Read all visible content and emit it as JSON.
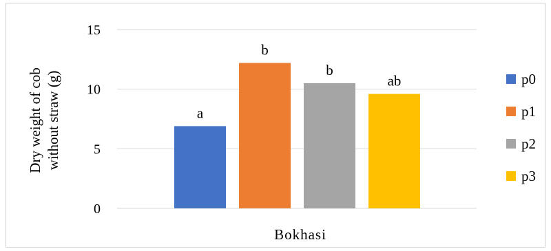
{
  "chart_data": {
    "type": "bar",
    "categories": [
      "Bokhasi"
    ],
    "series": [
      {
        "name": "p0",
        "values": [
          6.9
        ],
        "color": "#4472C4",
        "label": "a"
      },
      {
        "name": "p1",
        "values": [
          12.2
        ],
        "color": "#ED7D31",
        "label": "b"
      },
      {
        "name": "p2",
        "values": [
          10.5
        ],
        "color": "#A5A5A5",
        "label": "b"
      },
      {
        "name": "p3",
        "values": [
          9.6
        ],
        "color": "#FFC000",
        "label": "ab"
      }
    ],
    "yticks": [
      "0",
      "5",
      "10",
      "15"
    ],
    "ytick_values": [
      0,
      5,
      10,
      15
    ],
    "ylim": [
      0,
      15
    ],
    "ylabel_lines": [
      "Dry weight of cob",
      "without straw (g)"
    ],
    "xlabel": "",
    "title": "",
    "grid": true,
    "legend": "right"
  }
}
